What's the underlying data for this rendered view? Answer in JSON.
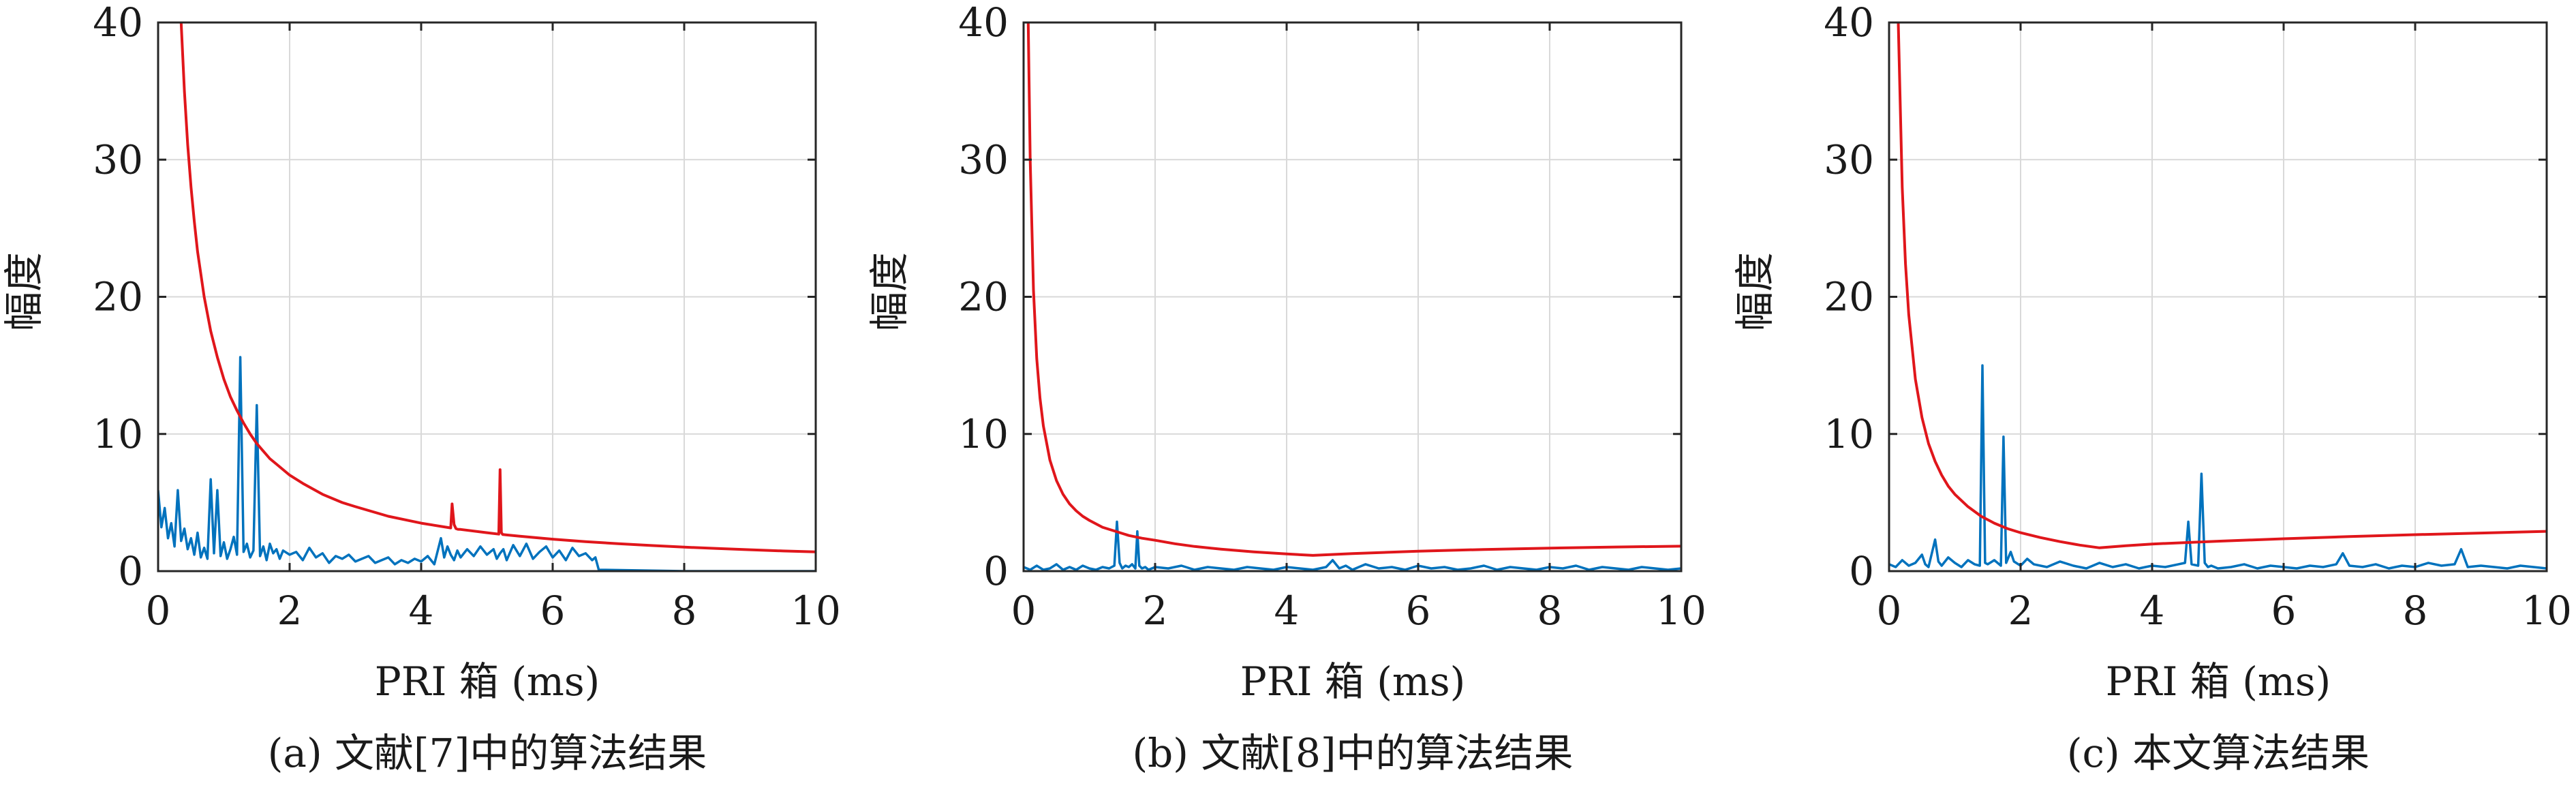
{
  "colors": {
    "spectrum": "#0072BD",
    "threshold": "#E0161B",
    "grid": "#d9d9d9",
    "axis": "#262626"
  },
  "chart_data": [
    {
      "type": "line",
      "caption": "(a) 文献[7]中的算法结果",
      "xlabel": "PRI 箱 (ms)",
      "ylabel": "幅度",
      "xlim": [
        0,
        10
      ],
      "ylim": [
        0,
        40
      ],
      "xticks": [
        "0",
        "2",
        "4",
        "6",
        "8",
        "10"
      ],
      "yticks": [
        "0",
        "10",
        "20",
        "30",
        "40"
      ],
      "grid": true,
      "series": [
        {
          "role": "spectrum",
          "x": [
            0,
            0.05,
            0.1,
            0.15,
            0.2,
            0.25,
            0.3,
            0.35,
            0.4,
            0.45,
            0.5,
            0.55,
            0.6,
            0.65,
            0.7,
            0.75,
            0.8,
            0.85,
            0.9,
            0.95,
            1.0,
            1.05,
            1.1,
            1.15,
            1.2,
            1.25,
            1.3,
            1.35,
            1.4,
            1.45,
            1.5,
            1.55,
            1.6,
            1.65,
            1.7,
            1.75,
            1.8,
            1.85,
            1.9,
            2.0,
            2.1,
            2.2,
            2.3,
            2.4,
            2.5,
            2.6,
            2.7,
            2.8,
            2.9,
            3.0,
            3.1,
            3.2,
            3.3,
            3.4,
            3.5,
            3.6,
            3.7,
            3.8,
            3.9,
            4.0,
            4.1,
            4.2,
            4.3,
            4.35,
            4.4,
            4.45,
            4.5,
            4.55,
            4.6,
            4.7,
            4.8,
            4.9,
            5.0,
            5.1,
            5.15,
            5.2,
            5.25,
            5.3,
            5.4,
            5.5,
            5.6,
            5.7,
            5.8,
            5.9,
            6.0,
            6.1,
            6.2,
            6.3,
            6.4,
            6.5,
            6.6,
            6.65,
            6.7,
            8.0,
            10.0
          ],
          "y": [
            5.9,
            3.2,
            4.6,
            2.4,
            3.5,
            1.8,
            5.9,
            2.2,
            3.1,
            1.6,
            2.4,
            1.2,
            2.8,
            1.0,
            1.7,
            0.9,
            6.7,
            1.3,
            5.9,
            1.1,
            2.1,
            0.9,
            1.6,
            2.5,
            1.2,
            15.6,
            1.4,
            2.0,
            1.0,
            1.5,
            12.1,
            1.1,
            1.8,
            0.8,
            2.0,
            1.3,
            1.6,
            0.9,
            1.5,
            1.2,
            1.4,
            0.8,
            1.7,
            1.0,
            1.3,
            0.6,
            1.1,
            0.9,
            1.2,
            0.7,
            0.9,
            1.1,
            0.6,
            0.8,
            1.0,
            0.5,
            0.8,
            0.6,
            0.9,
            0.7,
            1.1,
            0.5,
            2.4,
            1.0,
            1.8,
            1.2,
            0.8,
            1.5,
            1.0,
            1.6,
            1.1,
            1.8,
            1.2,
            1.6,
            0.9,
            1.3,
            1.6,
            0.8,
            1.9,
            1.1,
            2.0,
            0.9,
            1.4,
            1.8,
            1.0,
            1.5,
            0.8,
            1.7,
            1.1,
            1.3,
            0.8,
            1.0,
            0.1,
            0,
            0
          ]
        },
        {
          "role": "threshold",
          "x": [
            0.35,
            0.4,
            0.45,
            0.5,
            0.55,
            0.6,
            0.7,
            0.8,
            0.9,
            1.0,
            1.1,
            1.2,
            1.3,
            1.4,
            1.5,
            1.6,
            1.7,
            1.8,
            2.0,
            2.2,
            2.5,
            2.8,
            3.0,
            3.5,
            4.0,
            4.45,
            4.47,
            4.5,
            4.53,
            4.56,
            4.6,
            5.0,
            5.18,
            5.2,
            5.22,
            5.24,
            5.3,
            5.5,
            6.0,
            6.5,
            7.0,
            7.5,
            8.0,
            8.5,
            9.0,
            9.5,
            10.0
          ],
          "y": [
            40.0,
            35.0,
            31.1,
            28.0,
            25.5,
            23.3,
            20.0,
            17.5,
            15.6,
            14.0,
            12.7,
            11.7,
            10.8,
            10.0,
            9.3,
            8.75,
            8.2,
            7.8,
            7.0,
            6.4,
            5.6,
            5.0,
            4.7,
            4.0,
            3.5,
            3.15,
            4.9,
            3.4,
            3.1,
            3.05,
            3.04,
            2.8,
            2.7,
            7.4,
            2.8,
            2.67,
            2.64,
            2.55,
            2.33,
            2.15,
            2.0,
            1.87,
            1.75,
            1.65,
            1.56,
            1.47,
            1.4
          ]
        }
      ]
    },
    {
      "type": "line",
      "caption": "(b) 文献[8]中的算法结果",
      "xlabel": "PRI 箱 (ms)",
      "ylabel": "幅度",
      "xlim": [
        0,
        10
      ],
      "ylim": [
        0,
        40
      ],
      "xticks": [
        "0",
        "2",
        "4",
        "6",
        "8",
        "10"
      ],
      "yticks": [
        "0",
        "10",
        "20",
        "30",
        "40"
      ],
      "grid": true,
      "series": [
        {
          "role": "spectrum",
          "x": [
            0,
            0.1,
            0.2,
            0.3,
            0.4,
            0.5,
            0.6,
            0.7,
            0.8,
            0.9,
            1.0,
            1.1,
            1.2,
            1.3,
            1.38,
            1.42,
            1.46,
            1.5,
            1.55,
            1.6,
            1.65,
            1.7,
            1.73,
            1.76,
            1.8,
            1.85,
            1.9,
            2.0,
            2.2,
            2.4,
            2.6,
            2.8,
            3.0,
            3.2,
            3.4,
            3.6,
            3.8,
            4.0,
            4.2,
            4.4,
            4.6,
            4.7,
            4.8,
            4.9,
            5.0,
            5.2,
            5.4,
            5.6,
            5.8,
            6.0,
            6.2,
            6.4,
            6.6,
            6.8,
            7.0,
            7.2,
            7.4,
            7.6,
            7.8,
            8.0,
            8.2,
            8.4,
            8.6,
            8.8,
            9.0,
            9.2,
            9.4,
            9.6,
            9.8,
            10.0
          ],
          "y": [
            0.3,
            0.1,
            0.4,
            0.1,
            0.2,
            0.5,
            0.1,
            0.3,
            0.1,
            0.4,
            0.2,
            0.1,
            0.3,
            0.2,
            0.4,
            3.6,
            0.6,
            0.2,
            0.4,
            0.3,
            0.5,
            0.2,
            2.9,
            0.4,
            0.2,
            0.3,
            0.1,
            0.3,
            0.2,
            0.4,
            0.1,
            0.3,
            0.2,
            0.1,
            0.3,
            0.2,
            0.1,
            0.3,
            0.2,
            0.1,
            0.3,
            0.8,
            0.2,
            0.4,
            0.1,
            0.5,
            0.2,
            0.3,
            0.1,
            0.4,
            0.2,
            0.3,
            0.1,
            0.2,
            0.4,
            0.1,
            0.3,
            0.2,
            0.1,
            0.3,
            0.2,
            0.4,
            0.1,
            0.3,
            0.2,
            0.1,
            0.3,
            0.2,
            0.1,
            0.2
          ]
        },
        {
          "role": "threshold",
          "x": [
            0.07,
            0.1,
            0.15,
            0.2,
            0.25,
            0.3,
            0.4,
            0.5,
            0.6,
            0.7,
            0.8,
            0.9,
            1.0,
            1.2,
            1.4,
            1.6,
            1.8,
            2.0,
            2.3,
            2.6,
            3.0,
            3.5,
            4.0,
            4.4,
            5.0,
            6.0,
            7.0,
            8.0,
            9.0,
            10.0
          ],
          "y": [
            40.0,
            30.0,
            20.5,
            15.5,
            12.6,
            10.6,
            8.1,
            6.6,
            5.6,
            4.9,
            4.4,
            4.0,
            3.7,
            3.2,
            2.9,
            2.6,
            2.4,
            2.25,
            2.0,
            1.8,
            1.6,
            1.4,
            1.25,
            1.15,
            1.28,
            1.45,
            1.58,
            1.68,
            1.76,
            1.82
          ]
        }
      ]
    },
    {
      "type": "line",
      "caption": "(c) 本文算法结果",
      "xlabel": "PRI 箱 (ms)",
      "ylabel": "幅度",
      "xlim": [
        0,
        10
      ],
      "ylim": [
        0,
        40
      ],
      "xticks": [
        "0",
        "2",
        "4",
        "6",
        "8",
        "10"
      ],
      "yticks": [
        "0",
        "10",
        "20",
        "30",
        "40"
      ],
      "grid": true,
      "series": [
        {
          "role": "spectrum",
          "x": [
            0,
            0.1,
            0.2,
            0.3,
            0.4,
            0.5,
            0.55,
            0.6,
            0.7,
            0.75,
            0.8,
            0.9,
            1.0,
            1.1,
            1.2,
            1.3,
            1.38,
            1.42,
            1.46,
            1.5,
            1.6,
            1.7,
            1.74,
            1.78,
            1.85,
            1.9,
            2.0,
            2.1,
            2.2,
            2.4,
            2.6,
            2.8,
            3.0,
            3.2,
            3.4,
            3.6,
            3.8,
            4.0,
            4.2,
            4.4,
            4.5,
            4.55,
            4.6,
            4.7,
            4.75,
            4.8,
            4.85,
            4.9,
            5.0,
            5.2,
            5.4,
            5.6,
            5.8,
            6.0,
            6.2,
            6.4,
            6.6,
            6.8,
            6.9,
            7.0,
            7.2,
            7.4,
            7.6,
            7.8,
            8.0,
            8.2,
            8.4,
            8.6,
            8.7,
            8.8,
            9.0,
            9.2,
            9.4,
            9.6,
            9.8,
            10.0
          ],
          "y": [
            0.5,
            0.3,
            0.8,
            0.4,
            0.6,
            1.2,
            0.5,
            0.3,
            2.3,
            0.7,
            0.4,
            1.0,
            0.6,
            0.3,
            0.8,
            0.5,
            0.4,
            15.0,
            0.6,
            0.5,
            0.8,
            0.4,
            9.8,
            0.6,
            1.4,
            0.7,
            0.4,
            0.9,
            0.5,
            0.3,
            0.7,
            0.4,
            0.2,
            0.6,
            0.3,
            0.5,
            0.2,
            0.4,
            0.3,
            0.5,
            0.6,
            3.6,
            0.5,
            0.4,
            7.1,
            0.6,
            0.3,
            0.4,
            0.2,
            0.3,
            0.5,
            0.2,
            0.4,
            0.3,
            0.2,
            0.4,
            0.3,
            0.5,
            1.3,
            0.4,
            0.3,
            0.5,
            0.2,
            0.4,
            0.3,
            0.6,
            0.4,
            0.5,
            1.6,
            0.3,
            0.4,
            0.3,
            0.2,
            0.4,
            0.3,
            0.2
          ]
        },
        {
          "role": "threshold",
          "x": [
            0.14,
            0.2,
            0.25,
            0.3,
            0.4,
            0.5,
            0.6,
            0.7,
            0.8,
            0.9,
            1.0,
            1.2,
            1.4,
            1.6,
            1.8,
            2.0,
            2.3,
            2.6,
            2.9,
            3.2,
            3.6,
            4.0,
            5.0,
            6.0,
            7.0,
            8.0,
            9.0,
            10.0
          ],
          "y": [
            40.0,
            28.0,
            22.4,
            18.7,
            14.0,
            11.2,
            9.3,
            8.0,
            7.0,
            6.2,
            5.6,
            4.7,
            4.0,
            3.5,
            3.1,
            2.8,
            2.45,
            2.15,
            1.9,
            1.7,
            1.85,
            1.98,
            2.18,
            2.36,
            2.52,
            2.66,
            2.78,
            2.9
          ]
        }
      ]
    }
  ]
}
